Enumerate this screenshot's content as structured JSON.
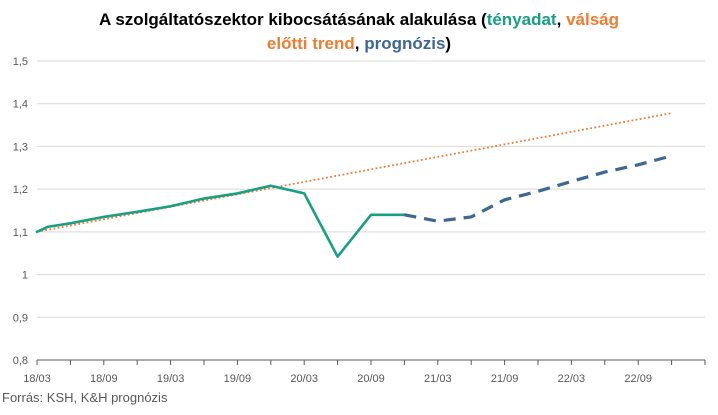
{
  "title": {
    "part1": "A szolgáltatószektor kibocsátásának alakulása (",
    "actual": "tényadat",
    "sep1": ", ",
    "trend_a": "válság",
    "trend_b": "előtti trend",
    "sep2": ", ",
    "forecast": "prognózis",
    "close": ")"
  },
  "source": "Forrás: KSH, K&H prognózis",
  "colors": {
    "actual": "#17a081",
    "trend": "#ed7d31",
    "forecast": "#3e6791",
    "axis": "#595959",
    "grid": "#d9d9d9"
  },
  "chart_data": {
    "type": "line",
    "x": [
      "18/03",
      "18/06",
      "18/09",
      "18/12",
      "19/03",
      "19/06",
      "19/09",
      "19/12",
      "20/03",
      "20/06",
      "20/09",
      "20/12",
      "21/03",
      "21/06",
      "21/09",
      "21/12",
      "22/03",
      "22/06",
      "22/09",
      "22/12"
    ],
    "x_tick_labels": [
      "18/03",
      "18/09",
      "19/03",
      "19/09",
      "20/03",
      "20/09",
      "21/03",
      "21/09",
      "22/03",
      "22/09"
    ],
    "y_tick_labels": [
      "0,8",
      "0,9",
      "1",
      "1,1",
      "1,2",
      "1,3",
      "1,4",
      "1,5"
    ],
    "ylim": [
      0.8,
      1.5
    ],
    "y_step": 0.1,
    "series": [
      {
        "key": "actual",
        "style": "solid",
        "points": [
          [
            "18/03",
            1.1
          ],
          [
            "18/04",
            1.112
          ],
          [
            "18/06",
            1.12
          ],
          [
            "18/09",
            1.135
          ],
          [
            "18/12",
            1.147
          ],
          [
            "19/03",
            1.16
          ],
          [
            "19/06",
            1.178
          ],
          [
            "19/09",
            1.19
          ],
          [
            "19/12",
            1.208
          ],
          [
            "20/03",
            1.19
          ],
          [
            "20/06",
            1.042
          ],
          [
            "20/09",
            1.14
          ],
          [
            "20/12",
            1.14
          ]
        ]
      },
      {
        "key": "forecast",
        "style": "dashed",
        "points": [
          [
            "20/12",
            1.14
          ],
          [
            "21/03",
            1.125
          ],
          [
            "21/06",
            1.135
          ],
          [
            "21/09",
            1.175
          ],
          [
            "21/12",
            1.195
          ],
          [
            "22/03",
            1.218
          ],
          [
            "22/06",
            1.24
          ],
          [
            "22/09",
            1.257
          ],
          [
            "22/12",
            1.278
          ]
        ]
      },
      {
        "key": "trend",
        "style": "dotted",
        "points": [
          [
            "18/03",
            1.1
          ],
          [
            "22/12",
            1.378
          ]
        ]
      }
    ]
  }
}
